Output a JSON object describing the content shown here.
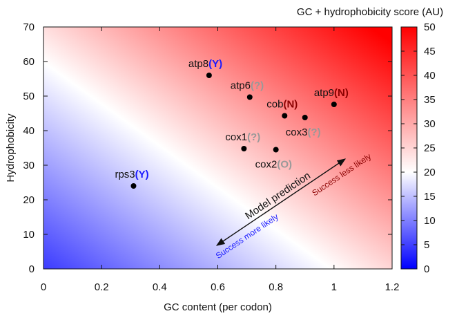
{
  "chart_data": {
    "type": "scatter",
    "xlabel": "GC content (per codon)",
    "ylabel": "Hydrophobicity",
    "xlim": [
      0,
      1.2
    ],
    "ylim": [
      0,
      70
    ],
    "xticks": [
      "0",
      "0.2",
      "0.4",
      "0.6",
      "0.8",
      "1",
      "1.2"
    ],
    "yticks": [
      "0",
      "10",
      "20",
      "30",
      "40",
      "50",
      "60",
      "70"
    ],
    "colorbar": {
      "label": "GC + hydrophobicity score (AU)",
      "range": [
        0,
        50
      ],
      "ticks": [
        "0",
        "5",
        "10",
        "15",
        "20",
        "25",
        "30",
        "35",
        "40",
        "45",
        "50"
      ],
      "colors": {
        "low": "#0000ff",
        "mid": "#ffffff",
        "high": "#ff0000"
      }
    },
    "points": [
      {
        "name": "rps3",
        "tag": "(Y)",
        "x": 0.31,
        "y": 24.0,
        "tag_color": "#1a1aff"
      },
      {
        "name": "atp8",
        "tag": "(Y)",
        "x": 0.57,
        "y": 56.0,
        "tag_color": "#1a1aff"
      },
      {
        "name": "atp6",
        "tag": "(?)",
        "x": 0.71,
        "y": 49.7,
        "tag_color": "#999999"
      },
      {
        "name": "cox1",
        "tag": "(?)",
        "x": 0.69,
        "y": 34.8,
        "tag_color": "#999999"
      },
      {
        "name": "cox2",
        "tag": "(O)",
        "x": 0.8,
        "y": 34.5,
        "tag_color": "#999999"
      },
      {
        "name": "cob",
        "tag": "(N)",
        "x": 0.83,
        "y": 44.3,
        "tag_color": "#8b0000"
      },
      {
        "name": "cox3",
        "tag": "(?)",
        "x": 0.9,
        "y": 43.8,
        "tag_color": "#999999"
      },
      {
        "name": "atp9",
        "tag": "(N)",
        "x": 1.0,
        "y": 47.6,
        "tag_color": "#8b0000"
      }
    ],
    "annotations": {
      "model": "Model prediction",
      "more": "Success more likely",
      "less": "Success less likely",
      "more_color": "#1a1aff",
      "less_color": "#8b0000"
    }
  }
}
